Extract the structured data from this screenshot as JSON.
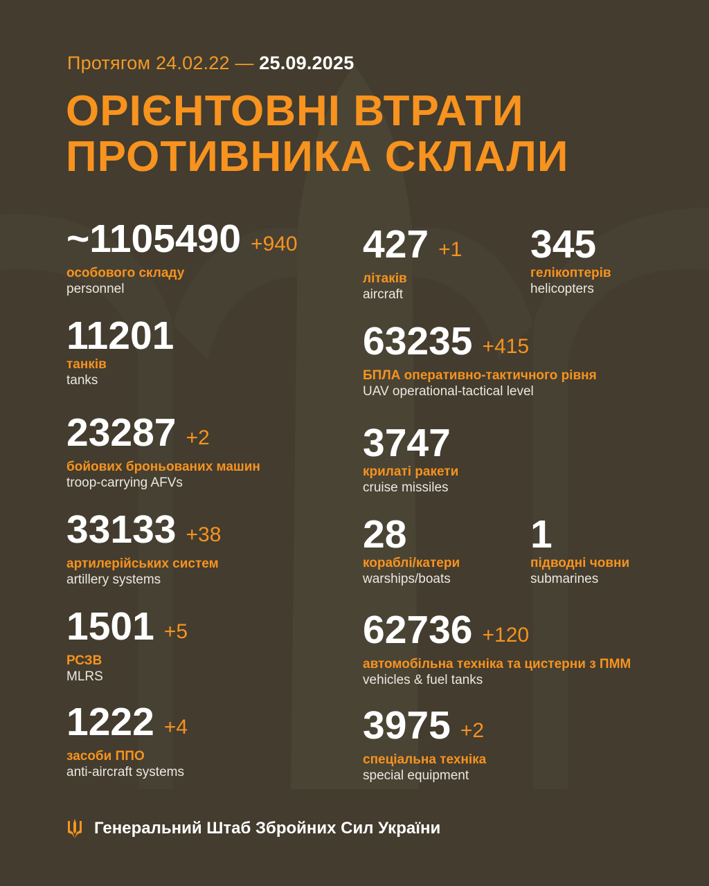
{
  "header": {
    "period_prefix": "Протягом 24.02.22 —",
    "period_end": "25.09.2025",
    "title_line1": "ОРІЄНТОВНІ ВТРАТИ",
    "title_line2": "ПРОТИВНИКА СКЛАЛИ"
  },
  "colors": {
    "background": "#433c2f",
    "accent": "#f7931e",
    "text": "#ffffff"
  },
  "left": [
    {
      "value": "~1105490",
      "delta": "+940",
      "ua": "особового складу",
      "en": "personnel"
    },
    {
      "value": "11201",
      "delta": "",
      "ua": "танків",
      "en": "tanks"
    },
    {
      "value": "23287",
      "delta": "+2",
      "ua": "бойових броньованих машин",
      "en": "troop-carrying AFVs"
    },
    {
      "value": "33133",
      "delta": "+38",
      "ua": "артилерійських систем",
      "en": "artillery systems"
    },
    {
      "value": "1501",
      "delta": "+5",
      "ua": "РСЗВ",
      "en": "MLRS"
    },
    {
      "value": "1222",
      "delta": "+4",
      "ua": "засоби ППО",
      "en": "anti-aircraft systems"
    }
  ],
  "right": [
    {
      "value": "427",
      "delta": "+1",
      "ua": "літаків",
      "en": "aircraft"
    },
    {
      "value": "345",
      "delta": "",
      "ua": "гелікоптерів",
      "en": "helicopters"
    },
    {
      "value": "63235",
      "delta": "+415",
      "ua": "БПЛА оперативно-тактичного рівня",
      "en": "UAV operational-tactical level"
    },
    {
      "value": "3747",
      "delta": "",
      "ua": "крилаті ракети",
      "en": "cruise missiles"
    },
    {
      "value": "28",
      "delta": "",
      "ua": "кораблі/катери",
      "en": "warships/boats"
    },
    {
      "value": "1",
      "delta": "",
      "ua": "підводні човни",
      "en": "submarines"
    },
    {
      "value": "62736",
      "delta": "+120",
      "ua": "автомобільна техніка та цистерни з ПММ",
      "en": "vehicles & fuel tanks"
    },
    {
      "value": "3975",
      "delta": "+2",
      "ua": "спеціальна техніка",
      "en": "special equipment"
    }
  ],
  "footer": {
    "icon": "trident-icon",
    "text": "Генеральний Штаб Збройних Сил України"
  }
}
